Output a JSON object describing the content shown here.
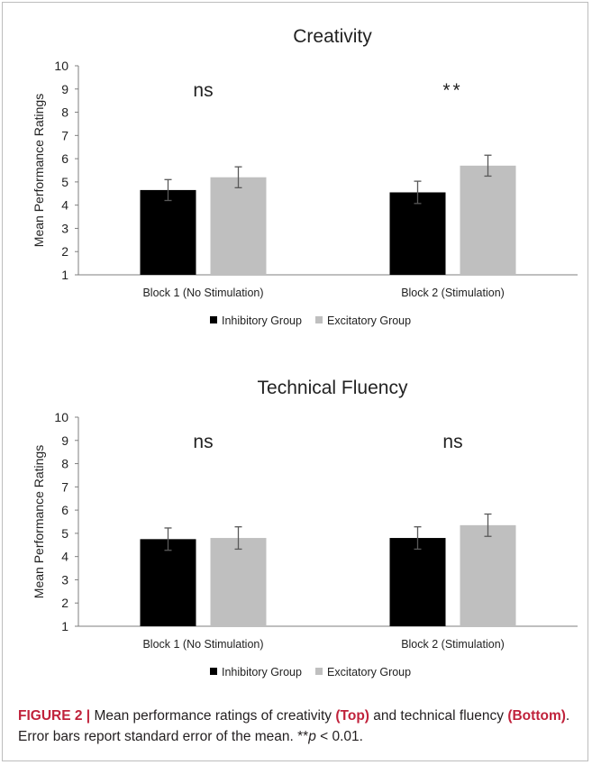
{
  "chart_data": [
    {
      "type": "bar",
      "title": "Creativity",
      "ylabel": "Mean Performance Ratings",
      "xlabel": "",
      "ylim": [
        1,
        10
      ],
      "yticks": [
        1,
        2,
        3,
        4,
        5,
        6,
        7,
        8,
        9,
        10
      ],
      "categories": [
        "Block 1 (No Stimulation)",
        "Block 2 (Stimulation)"
      ],
      "series": [
        {
          "name": "Inhibitory Group",
          "color": "#000000",
          "values": [
            4.65,
            4.55
          ],
          "errors": [
            0.45,
            0.48
          ]
        },
        {
          "name": "Excitatory Group",
          "color": "#bfbfbf",
          "values": [
            5.2,
            5.7
          ],
          "errors": [
            0.45,
            0.45
          ]
        }
      ],
      "annotations": [
        "ns",
        "**"
      ],
      "legend": "bottom",
      "grid": false
    },
    {
      "type": "bar",
      "title": "Technical Fluency",
      "ylabel": "Mean Performance Ratings",
      "xlabel": "",
      "ylim": [
        1,
        10
      ],
      "yticks": [
        1,
        2,
        3,
        4,
        5,
        6,
        7,
        8,
        9,
        10
      ],
      "categories": [
        "Block 1 (No Stimulation)",
        "Block 2 (Stimulation)"
      ],
      "series": [
        {
          "name": "Inhibitory Group",
          "color": "#000000",
          "values": [
            4.75,
            4.8
          ],
          "errors": [
            0.48,
            0.48
          ]
        },
        {
          "name": "Excitatory Group",
          "color": "#bfbfbf",
          "values": [
            4.8,
            5.35
          ],
          "errors": [
            0.48,
            0.48
          ]
        }
      ],
      "annotations": [
        "ns",
        "ns"
      ],
      "legend": "bottom",
      "grid": false
    }
  ],
  "caption": {
    "label": "FIGURE 2 |",
    "t1": " Mean performance ratings of creativity ",
    "top": "(Top)",
    "t2": " and technical fluency ",
    "bottom": "(Bottom)",
    "t3": ". Error bars report standard error of the mean. **",
    "p": "p",
    "t4": " < 0.01."
  }
}
